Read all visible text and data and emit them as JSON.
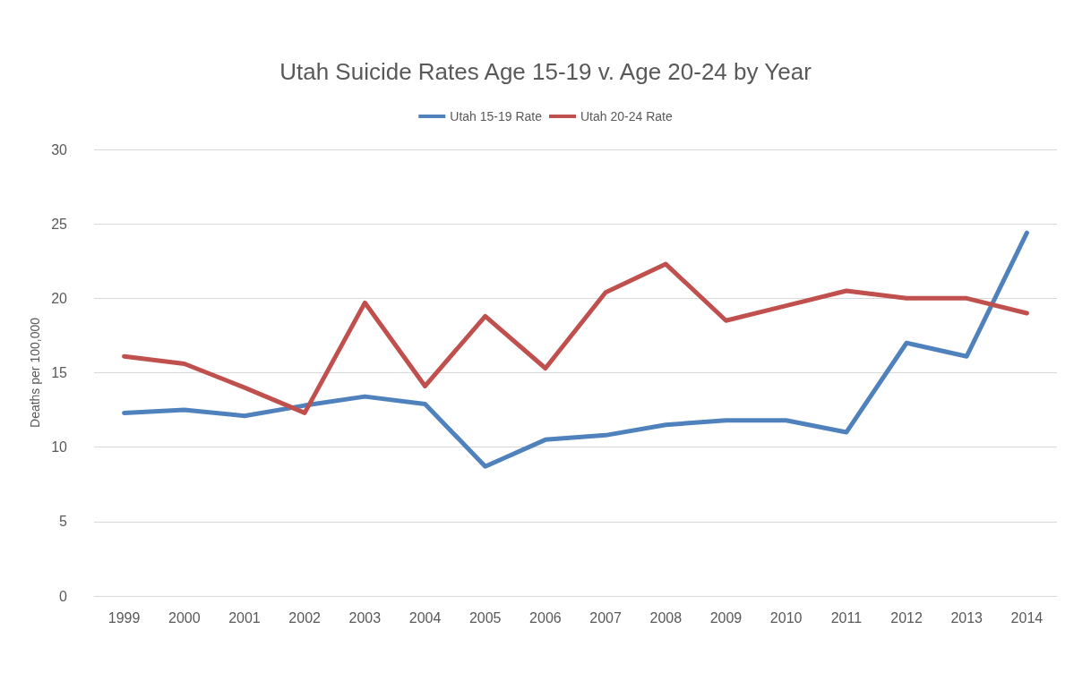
{
  "chart_data": {
    "type": "line",
    "title": "Utah Suicide Rates Age 15-19 v. Age 20-24 by Year",
    "ylabel": "Deaths per 100,000",
    "categories": [
      "1999",
      "2000",
      "2001",
      "2002",
      "2003",
      "2004",
      "2005",
      "2006",
      "2007",
      "2008",
      "2009",
      "2010",
      "2011",
      "2012",
      "2013",
      "2014"
    ],
    "series": [
      {
        "name": "Utah 15-19 Rate",
        "color": "#4f81bd",
        "values": [
          12.3,
          12.5,
          12.1,
          12.8,
          13.4,
          12.9,
          8.7,
          10.5,
          10.8,
          11.5,
          11.8,
          11.8,
          11.0,
          17.0,
          16.1,
          24.4
        ]
      },
      {
        "name": "Utah 20-24 Rate",
        "color": "#c0504d",
        "values": [
          16.1,
          15.6,
          14.0,
          12.3,
          19.7,
          14.1,
          18.8,
          15.3,
          20.4,
          22.3,
          18.5,
          19.5,
          20.5,
          20.0,
          20.0,
          19.0
        ]
      }
    ],
    "ylim": [
      0,
      30
    ],
    "yticks": [
      0,
      5,
      10,
      15,
      20,
      25,
      30
    ],
    "grid": "y",
    "legend": "top",
    "marker": "none",
    "line_style": "solid"
  }
}
